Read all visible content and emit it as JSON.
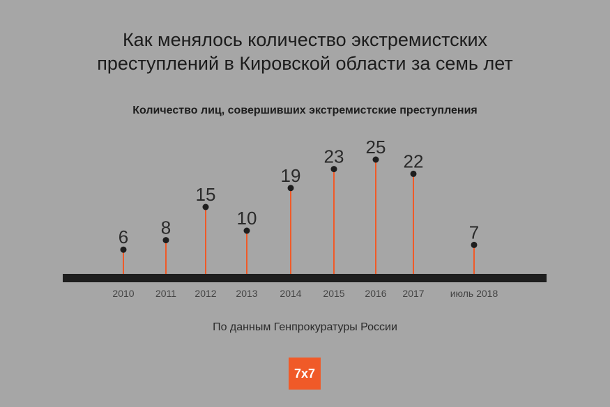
{
  "title_line1": "Как менялось количество экстремистских",
  "title_line2": "преступлений в Кировской области за семь лет",
  "subtitle": "Количество лиц, совершивших экстремистские преступления",
  "source": "По данным Генпрокуратуры России",
  "logo": {
    "text": "7x7",
    "color": "#f05a28"
  },
  "colors": {
    "background": "#a6a6a6",
    "stem": "#f05a28",
    "dot": "#1e1e1e",
    "baseline": "#1e1e1e"
  },
  "chart_data": {
    "type": "lollipop",
    "categories": [
      "2010",
      "2011",
      "2012",
      "2013",
      "2014",
      "2015",
      "2016",
      "2017",
      "июль 2018"
    ],
    "values": [
      6,
      8,
      15,
      10,
      19,
      23,
      25,
      22,
      7
    ],
    "title": "Количество лиц, совершивших экстремистские преступления",
    "xlabel": "",
    "ylabel": "",
    "ylim": [
      0,
      25
    ],
    "grid": false,
    "legend": "none"
  }
}
